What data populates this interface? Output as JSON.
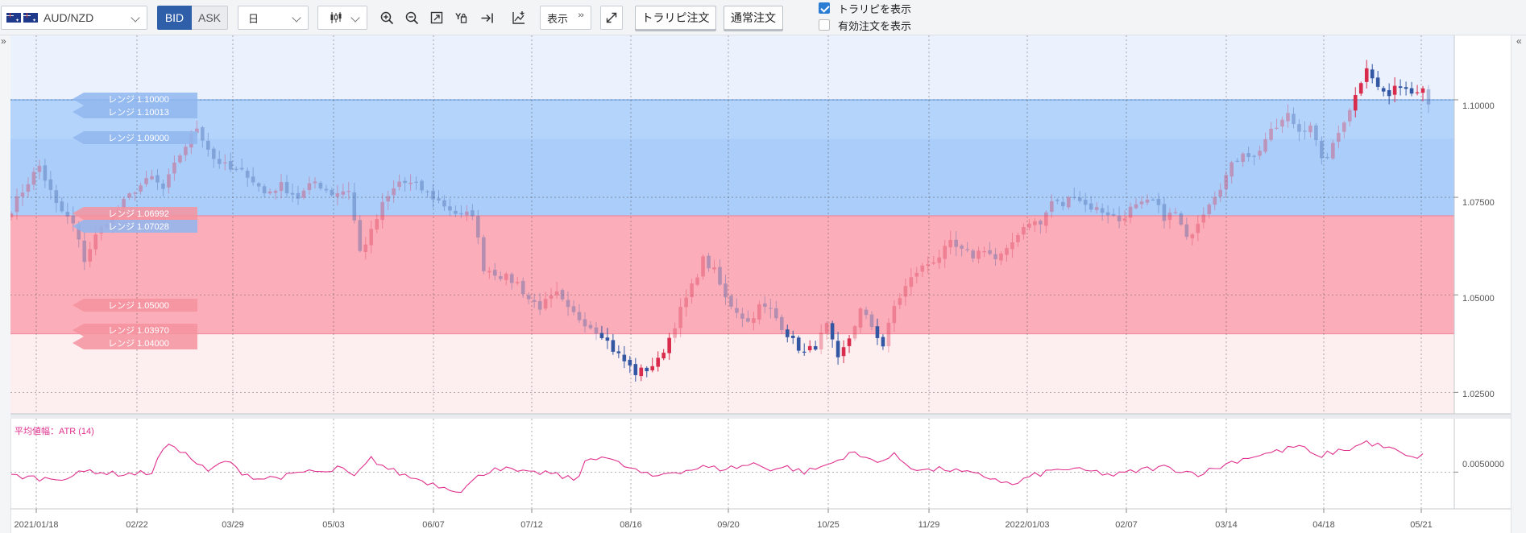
{
  "toolbar": {
    "symbol": "AUD/NZD",
    "bid_label": "BID",
    "ask_label": "ASK",
    "timeframe": "日",
    "display_label": "表示",
    "trarepi_order_label": "トラリピ注文",
    "normal_order_label": "通常注文",
    "show_trarepi_label": "トラリピを表示",
    "show_trarepi_checked": true,
    "show_active_orders_label": "有効注文を表示",
    "show_active_orders_checked": false
  },
  "icons": [
    "australia-flag-icon",
    "new-zealand-flag-icon",
    "candlestick-icon",
    "zoom-in-icon",
    "zoom-out-icon",
    "fit-screen-icon",
    "crosshair-icon",
    "jump-to-latest-icon",
    "add-indicator-icon",
    "fullscreen-icon",
    "collapse-left-icon",
    "collapse-right-icon"
  ],
  "colors": {
    "accent": "#2f5fa8",
    "candle_up": "#d92b4b",
    "candle_down": "#3357a3",
    "sell_zone": "#b5d4fb",
    "buy_zone": "#fbadb9",
    "atr_line": "#e0318f"
  },
  "chart_data": {
    "type": "candlestick",
    "symbol": "AUD/NZD",
    "timeframe": "日",
    "price_axis": {
      "ylim": [
        1.0195,
        1.1165
      ],
      "ticks": [
        "1.10000",
        "1.07500",
        "1.05000",
        "1.02500"
      ]
    },
    "x_labels": [
      "2021/01/18",
      "02/22",
      "03/29",
      "05/03",
      "06/07",
      "07/12",
      "08/16",
      "09/20",
      "10/25",
      "11/29",
      "2022/01/03",
      "02/07",
      "03/14",
      "04/18",
      "05/21"
    ],
    "range_labels": [
      {
        "text": "レンジ 1.10000",
        "value": 1.1,
        "side": "sell"
      },
      {
        "text": "レンジ 1.10013",
        "value": 1.10013,
        "side": "sell"
      },
      {
        "text": "レンジ 1.09000",
        "value": 1.09,
        "side": "sell"
      },
      {
        "text": "レンジ 1.06992",
        "value": 1.06992,
        "side": "buy"
      },
      {
        "text": "レンジ 1.07028",
        "value": 1.07028,
        "side": "sell"
      },
      {
        "text": "レンジ 1.05000",
        "value": 1.05,
        "side": "buy"
      },
      {
        "text": "レンジ 1.03970",
        "value": 1.0397,
        "side": "buy"
      },
      {
        "text": "レンジ 1.04000",
        "value": 1.04,
        "side": "buy"
      }
    ],
    "zones": [
      {
        "side": "sell",
        "from": 1.07028,
        "to": 1.1
      },
      {
        "side": "buy",
        "from": 1.04,
        "to": 1.07028
      }
    ],
    "close_keypoints": [
      [
        0,
        1.072
      ],
      [
        3,
        1.079
      ],
      [
        5,
        1.083
      ],
      [
        8,
        1.073
      ],
      [
        11,
        1.068
      ],
      [
        13,
        1.059
      ],
      [
        15,
        1.065
      ],
      [
        17,
        1.069
      ],
      [
        19,
        1.072
      ],
      [
        22,
        1.077
      ],
      [
        25,
        1.08
      ],
      [
        27,
        1.077
      ],
      [
        30,
        1.086
      ],
      [
        33,
        1.093
      ],
      [
        36,
        1.085
      ],
      [
        39,
        1.082
      ],
      [
        42,
        1.081
      ],
      [
        45,
        1.076
      ],
      [
        48,
        1.078
      ],
      [
        51,
        1.075
      ],
      [
        54,
        1.079
      ],
      [
        57,
        1.076
      ],
      [
        60,
        1.077
      ],
      [
        62,
        1.061
      ],
      [
        64,
        1.066
      ],
      [
        66,
        1.073
      ],
      [
        69,
        1.079
      ],
      [
        72,
        1.078
      ],
      [
        75,
        1.075
      ],
      [
        78,
        1.072
      ],
      [
        80,
        1.07
      ],
      [
        82,
        1.071
      ],
      [
        84,
        1.057
      ],
      [
        87,
        1.055
      ],
      [
        90,
        1.053
      ],
      [
        92,
        1.049
      ],
      [
        94,
        1.047
      ],
      [
        97,
        1.05
      ],
      [
        99,
        1.046
      ],
      [
        102,
        1.043
      ],
      [
        105,
        1.04
      ],
      [
        107,
        1.036
      ],
      [
        109,
        1.033
      ],
      [
        111,
        1.03
      ],
      [
        113,
        1.031
      ],
      [
        115,
        1.033
      ],
      [
        117,
        1.039
      ],
      [
        119,
        1.046
      ],
      [
        121,
        1.052
      ],
      [
        123,
        1.059
      ],
      [
        125,
        1.056
      ],
      [
        127,
        1.049
      ],
      [
        129,
        1.046
      ],
      [
        131,
        1.043
      ],
      [
        133,
        1.047
      ],
      [
        135,
        1.046
      ],
      [
        137,
        1.042
      ],
      [
        139,
        1.038
      ],
      [
        141,
        1.035
      ],
      [
        143,
        1.037
      ],
      [
        145,
        1.042
      ],
      [
        147,
        1.033
      ],
      [
        149,
        1.039
      ],
      [
        151,
        1.046
      ],
      [
        153,
        1.042
      ],
      [
        155,
        1.037
      ],
      [
        157,
        1.047
      ],
      [
        159,
        1.052
      ],
      [
        161,
        1.056
      ],
      [
        163,
        1.058
      ],
      [
        165,
        1.06
      ],
      [
        167,
        1.063
      ],
      [
        169,
        1.061
      ],
      [
        171,
        1.06
      ],
      [
        173,
        1.062
      ],
      [
        175,
        1.059
      ],
      [
        177,
        1.061
      ],
      [
        179,
        1.066
      ],
      [
        181,
        1.069
      ],
      [
        183,
        1.068
      ],
      [
        185,
        1.074
      ],
      [
        187,
        1.073
      ],
      [
        189,
        1.076
      ],
      [
        191,
        1.073
      ],
      [
        193,
        1.072
      ],
      [
        195,
        1.071
      ],
      [
        197,
        1.069
      ],
      [
        199,
        1.072
      ],
      [
        201,
        1.073
      ],
      [
        203,
        1.074
      ],
      [
        205,
        1.07
      ],
      [
        207,
        1.071
      ],
      [
        209,
        1.064
      ],
      [
        211,
        1.069
      ],
      [
        213,
        1.074
      ],
      [
        215,
        1.078
      ],
      [
        217,
        1.083
      ],
      [
        219,
        1.087
      ],
      [
        221,
        1.085
      ],
      [
        223,
        1.09
      ],
      [
        225,
        1.093
      ],
      [
        227,
        1.096
      ],
      [
        229,
        1.092
      ],
      [
        231,
        1.094
      ],
      [
        233,
        1.084
      ],
      [
        235,
        1.088
      ],
      [
        237,
        1.095
      ],
      [
        239,
        1.101
      ],
      [
        241,
        1.109
      ],
      [
        243,
        1.103
      ],
      [
        245,
        1.101
      ],
      [
        247,
        1.104
      ],
      [
        249,
        1.102
      ],
      [
        251,
        1.104
      ],
      [
        252,
        1.099
      ]
    ],
    "indicator": {
      "label": "平均値幅：ATR (14)",
      "ylim": [
        0.0028,
        0.0082
      ],
      "ticks": [
        "0.0050000"
      ],
      "keypoints": [
        [
          0,
          0.0048
        ],
        [
          6,
          0.0046
        ],
        [
          10,
          0.0047
        ],
        [
          14,
          0.0051
        ],
        [
          18,
          0.0049
        ],
        [
          22,
          0.0049
        ],
        [
          25,
          0.005
        ],
        [
          27,
          0.0064
        ],
        [
          29,
          0.0066
        ],
        [
          32,
          0.0058
        ],
        [
          35,
          0.005
        ],
        [
          38,
          0.0057
        ],
        [
          41,
          0.005
        ],
        [
          44,
          0.0046
        ],
        [
          47,
          0.0047
        ],
        [
          50,
          0.0048
        ],
        [
          53,
          0.0051
        ],
        [
          56,
          0.0049
        ],
        [
          58,
          0.0053
        ],
        [
          61,
          0.0047
        ],
        [
          64,
          0.0058
        ],
        [
          67,
          0.0052
        ],
        [
          70,
          0.0048
        ],
        [
          73,
          0.0045
        ],
        [
          77,
          0.0041
        ],
        [
          80,
          0.0039
        ],
        [
          83,
          0.0047
        ],
        [
          86,
          0.0053
        ],
        [
          89,
          0.0051
        ],
        [
          92,
          0.0049
        ],
        [
          95,
          0.005
        ],
        [
          98,
          0.0047
        ],
        [
          101,
          0.0046
        ],
        [
          102,
          0.0057
        ],
        [
          105,
          0.006
        ],
        [
          108,
          0.0055
        ],
        [
          111,
          0.0051
        ],
        [
          114,
          0.0047
        ],
        [
          117,
          0.005
        ],
        [
          120,
          0.0051
        ],
        [
          123,
          0.0053
        ],
        [
          126,
          0.0052
        ],
        [
          129,
          0.0053
        ],
        [
          132,
          0.0055
        ],
        [
          135,
          0.0052
        ],
        [
          138,
          0.0053
        ],
        [
          141,
          0.005
        ],
        [
          144,
          0.0053
        ],
        [
          147,
          0.0057
        ],
        [
          149,
          0.0062
        ],
        [
          152,
          0.0058
        ],
        [
          155,
          0.0057
        ],
        [
          157,
          0.006
        ],
        [
          160,
          0.0053
        ],
        [
          163,
          0.0051
        ],
        [
          166,
          0.0052
        ],
        [
          169,
          0.005
        ],
        [
          172,
          0.0048
        ],
        [
          175,
          0.0046
        ],
        [
          178,
          0.0042
        ],
        [
          181,
          0.0047
        ],
        [
          184,
          0.005
        ],
        [
          187,
          0.0052
        ],
        [
          190,
          0.0051
        ],
        [
          193,
          0.005
        ],
        [
          196,
          0.0048
        ],
        [
          199,
          0.005
        ],
        [
          202,
          0.0052
        ],
        [
          205,
          0.0053
        ],
        [
          208,
          0.0051
        ],
        [
          211,
          0.0049
        ],
        [
          214,
          0.0052
        ],
        [
          217,
          0.0056
        ],
        [
          220,
          0.0059
        ],
        [
          223,
          0.0061
        ],
        [
          226,
          0.0063
        ],
        [
          229,
          0.0066
        ],
        [
          232,
          0.0059
        ],
        [
          235,
          0.0062
        ],
        [
          238,
          0.0064
        ],
        [
          241,
          0.0068
        ],
        [
          243,
          0.0066
        ],
        [
          246,
          0.0063
        ],
        [
          249,
          0.0058
        ],
        [
          251,
          0.0061
        ]
      ]
    }
  }
}
